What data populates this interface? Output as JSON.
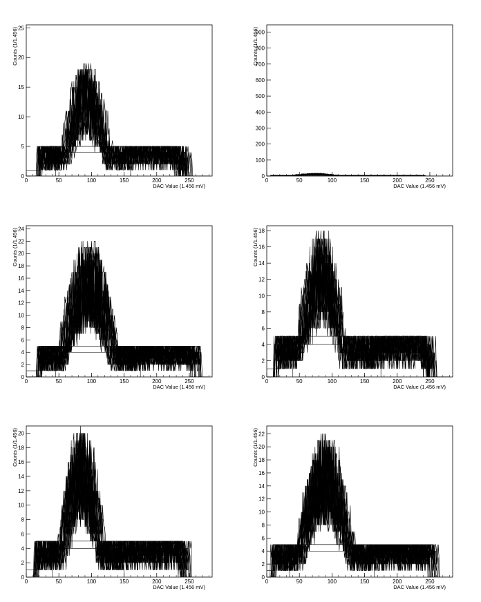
{
  "chart_data": [
    {
      "type": "line",
      "xlabel": "DAC Value (1.456 mV)",
      "ylabel": "Counts (1/1.456)",
      "xlim": [
        0,
        285
      ],
      "ylim": [
        0,
        25.5
      ],
      "xticks": [
        0,
        50,
        100,
        150,
        200,
        250
      ],
      "yticks": [
        0,
        5,
        10,
        15,
        20,
        25
      ],
      "series_count": 16,
      "plateau": {
        "x": [
          20,
          235
        ],
        "y": 5
      },
      "peak": {
        "x": [
          55,
          130
        ],
        "max": 19
      },
      "tail": {
        "x": [
          160,
          245
        ]
      }
    },
    {
      "type": "line",
      "xlabel": "DAC Value (1.456 mV)",
      "ylabel": "Counts (1/1.456)",
      "xlim": [
        0,
        285
      ],
      "ylim": [
        0,
        945
      ],
      "xticks": [
        0,
        50,
        100,
        150,
        200,
        250
      ],
      "yticks": [
        0,
        100,
        200,
        300,
        400,
        500,
        600,
        700,
        800,
        900
      ],
      "series_count": 16,
      "plateau": {
        "x": [
          10,
          235
        ],
        "y": 5
      },
      "peak": {
        "x": [
          40,
          110
        ],
        "max": 18
      },
      "tail": {
        "x": [
          150,
          235
        ]
      }
    },
    {
      "type": "line",
      "xlabel": "DAC Value (1.456 mV)",
      "ylabel": "Counts (1/1.456)",
      "xlim": [
        0,
        285
      ],
      "ylim": [
        0,
        24.5
      ],
      "xticks": [
        0,
        50,
        100,
        150,
        200,
        250
      ],
      "yticks": [
        0,
        2,
        4,
        6,
        8,
        10,
        12,
        14,
        16,
        18,
        20,
        22,
        24
      ],
      "series_count": 18,
      "plateau": {
        "x": [
          20,
          260
        ],
        "y": 5
      },
      "peak": {
        "x": [
          50,
          140
        ],
        "max": 22
      },
      "tail": {
        "x": [
          175,
          260
        ]
      }
    },
    {
      "type": "line",
      "xlabel": "DAC Value (1.456 mV)",
      "ylabel": "Counts (1/1.456)",
      "xlim": [
        0,
        285
      ],
      "ylim": [
        0,
        18.6
      ],
      "xticks": [
        0,
        50,
        100,
        150,
        200,
        250
      ],
      "yticks": [
        0,
        2,
        4,
        6,
        8,
        10,
        12,
        14,
        16,
        18
      ],
      "series_count": 16,
      "plateau": {
        "x": [
          15,
          245
        ],
        "y": 5
      },
      "peak": {
        "x": [
          45,
          125
        ],
        "max": 18
      },
      "tail": {
        "x": [
          175,
          255
        ]
      }
    },
    {
      "type": "line",
      "xlabel": "DAC Value (1.456 mV)",
      "ylabel": "Counts (1/1.456)",
      "xlim": [
        0,
        285
      ],
      "ylim": [
        0,
        21
      ],
      "xticks": [
        0,
        50,
        100,
        150,
        200,
        250
      ],
      "yticks": [
        0,
        2,
        4,
        6,
        8,
        10,
        12,
        14,
        16,
        18,
        20
      ],
      "series_count": 18,
      "plateau": {
        "x": [
          15,
          240
        ],
        "y": 5
      },
      "peak": {
        "x": [
          50,
          120
        ],
        "max": 21
      },
      "tail": {
        "x": [
          150,
          245
        ]
      }
    },
    {
      "type": "line",
      "xlabel": "DAC Value (1.456 mV)",
      "ylabel": "Counts (1/1.456)",
      "xlim": [
        0,
        285
      ],
      "ylim": [
        0,
        23.2
      ],
      "xticks": [
        0,
        50,
        100,
        150,
        200,
        250
      ],
      "yticks": [
        0,
        2,
        4,
        6,
        8,
        10,
        12,
        14,
        16,
        18,
        20,
        22
      ],
      "series_count": 18,
      "plateau": {
        "x": [
          10,
          255
        ],
        "y": 5
      },
      "peak": {
        "x": [
          45,
          135
        ],
        "max": 22
      },
      "tail": {
        "x": [
          165,
          255
        ]
      }
    }
  ]
}
